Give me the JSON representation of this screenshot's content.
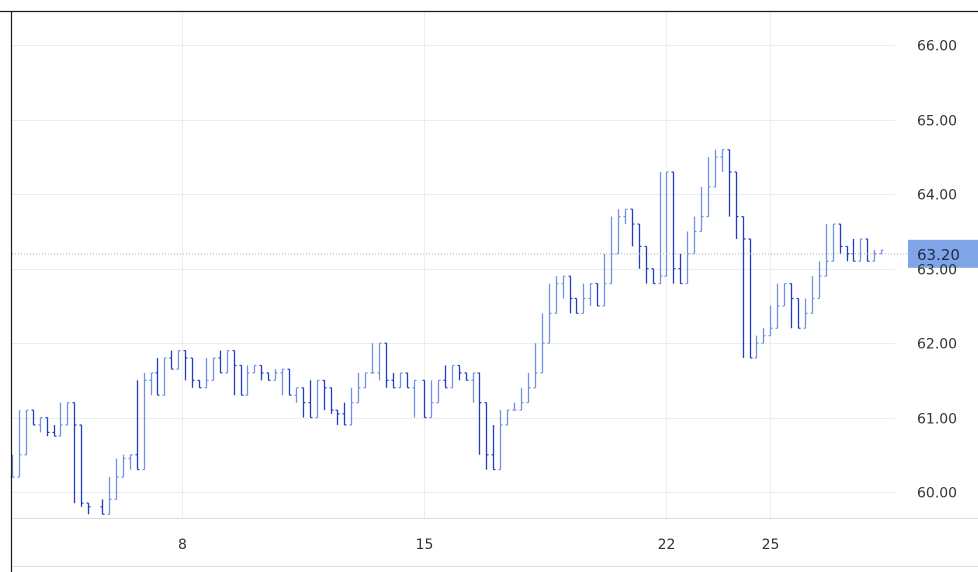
{
  "chart_data": {
    "type": "bar",
    "subtype": "ohlc",
    "title": "",
    "xlabel": "",
    "ylabel": "",
    "ylim": [
      59.65,
      66.45
    ],
    "y_ticks": [
      60.0,
      61.0,
      62.0,
      63.0,
      64.0,
      65.0,
      66.0
    ],
    "y_tick_labels": [
      "60.00",
      "61.00",
      "62.00",
      "63.00",
      "64.00",
      "65.00",
      "66.00"
    ],
    "x_ticks": [
      8,
      15,
      22,
      25
    ],
    "x_tick_labels": [
      "8",
      "15",
      "22",
      "25"
    ],
    "xlim": [
      3.1,
      28.6
    ],
    "grid": true,
    "current_price": 63.2,
    "current_price_label": "63.20",
    "colors": {
      "up": "#6f93e0",
      "down": "#1f3fbf",
      "grid": "#ededed",
      "badge": "#7fa5e6",
      "badge_text": "#1b2a4a",
      "price_line": "#a8a8a8"
    },
    "series": [
      {
        "values": [
          [
            3.1,
            60.2
          ],
          [
            3.3,
            60.5
          ],
          [
            3.5,
            61.1
          ],
          [
            3.7,
            60.9
          ],
          [
            3.9,
            61.0
          ],
          [
            4.1,
            60.8
          ],
          [
            4.3,
            60.75
          ],
          [
            4.5,
            60.9
          ],
          [
            4.7,
            61.2
          ],
          [
            4.9,
            60.9
          ],
          [
            5.1,
            59.85
          ],
          [
            5.3,
            59.8
          ],
          [
            5.7,
            59.7
          ],
          [
            5.9,
            59.9
          ],
          [
            6.1,
            60.2
          ],
          [
            6.3,
            60.45
          ],
          [
            6.5,
            60.5
          ],
          [
            6.7,
            60.3
          ],
          [
            6.9,
            61.5
          ],
          [
            7.1,
            61.6
          ],
          [
            7.3,
            61.3
          ],
          [
            7.5,
            61.8
          ],
          [
            7.7,
            61.65
          ],
          [
            7.9,
            61.9
          ],
          [
            8.1,
            61.8
          ],
          [
            8.3,
            61.5
          ],
          [
            8.5,
            61.4
          ],
          [
            8.7,
            61.5
          ],
          [
            8.9,
            61.8
          ],
          [
            9.1,
            61.6
          ],
          [
            9.3,
            61.9
          ],
          [
            9.5,
            61.7
          ],
          [
            9.7,
            61.3
          ],
          [
            9.9,
            61.6
          ],
          [
            10.1,
            61.7
          ],
          [
            10.3,
            61.6
          ],
          [
            10.5,
            61.5
          ],
          [
            10.7,
            61.6
          ],
          [
            10.9,
            61.65
          ],
          [
            11.1,
            61.3
          ],
          [
            11.3,
            61.4
          ],
          [
            11.5,
            61.2
          ],
          [
            11.7,
            61.0
          ],
          [
            11.9,
            61.5
          ],
          [
            12.1,
            61.4
          ],
          [
            12.3,
            61.1
          ],
          [
            12.5,
            61.05
          ],
          [
            12.7,
            60.9
          ],
          [
            12.9,
            61.2
          ],
          [
            13.1,
            61.4
          ],
          [
            13.3,
            61.6
          ],
          [
            13.5,
            61.6
          ],
          [
            13.7,
            62.0
          ],
          [
            13.9,
            61.5
          ],
          [
            14.1,
            61.4
          ],
          [
            14.3,
            61.6
          ],
          [
            14.5,
            61.4
          ],
          [
            14.7,
            61.5
          ],
          [
            15.0,
            61.0
          ],
          [
            15.2,
            61.2
          ],
          [
            15.4,
            61.5
          ],
          [
            15.6,
            61.4
          ],
          [
            15.8,
            61.7
          ],
          [
            16.0,
            61.6
          ],
          [
            16.2,
            61.5
          ],
          [
            16.4,
            61.6
          ],
          [
            16.6,
            61.2
          ],
          [
            16.8,
            60.5
          ],
          [
            17.0,
            60.3
          ],
          [
            17.2,
            60.9
          ],
          [
            17.4,
            61.1
          ],
          [
            17.6,
            61.1
          ],
          [
            17.8,
            61.2
          ],
          [
            18.0,
            61.4
          ],
          [
            18.2,
            61.6
          ],
          [
            18.4,
            62.0
          ],
          [
            18.6,
            62.4
          ],
          [
            18.8,
            62.8
          ],
          [
            19.0,
            62.9
          ],
          [
            19.2,
            62.6
          ],
          [
            19.4,
            62.4
          ],
          [
            19.6,
            62.6
          ],
          [
            19.8,
            62.8
          ],
          [
            20.0,
            62.5
          ],
          [
            20.2,
            62.8
          ],
          [
            20.4,
            63.2
          ],
          [
            20.6,
            63.7
          ],
          [
            20.8,
            63.8
          ],
          [
            21.0,
            63.6
          ],
          [
            21.2,
            63.3
          ],
          [
            21.4,
            63.0
          ],
          [
            21.6,
            62.8
          ],
          [
            21.8,
            62.9
          ],
          [
            22.0,
            64.3
          ],
          [
            22.2,
            63.0
          ],
          [
            22.4,
            62.8
          ],
          [
            22.6,
            63.2
          ],
          [
            22.8,
            63.5
          ],
          [
            23.0,
            63.7
          ],
          [
            23.2,
            64.1
          ],
          [
            23.4,
            64.5
          ],
          [
            23.6,
            64.6
          ],
          [
            23.8,
            64.3
          ],
          [
            24.0,
            63.7
          ],
          [
            24.2,
            63.4
          ],
          [
            24.4,
            61.8
          ],
          [
            24.6,
            62.0
          ],
          [
            24.8,
            62.1
          ],
          [
            25.0,
            62.2
          ],
          [
            25.2,
            62.5
          ],
          [
            25.4,
            62.8
          ],
          [
            25.6,
            62.6
          ],
          [
            25.8,
            62.2
          ],
          [
            26.0,
            62.4
          ],
          [
            26.2,
            62.6
          ],
          [
            26.4,
            62.9
          ],
          [
            26.6,
            63.1
          ],
          [
            26.8,
            63.6
          ],
          [
            27.0,
            63.3
          ],
          [
            27.2,
            63.2
          ],
          [
            27.4,
            63.1
          ],
          [
            27.6,
            63.4
          ],
          [
            27.8,
            63.1
          ],
          [
            28.0,
            63.2
          ],
          [
            28.2,
            63.25
          ]
        ]
      }
    ]
  }
}
